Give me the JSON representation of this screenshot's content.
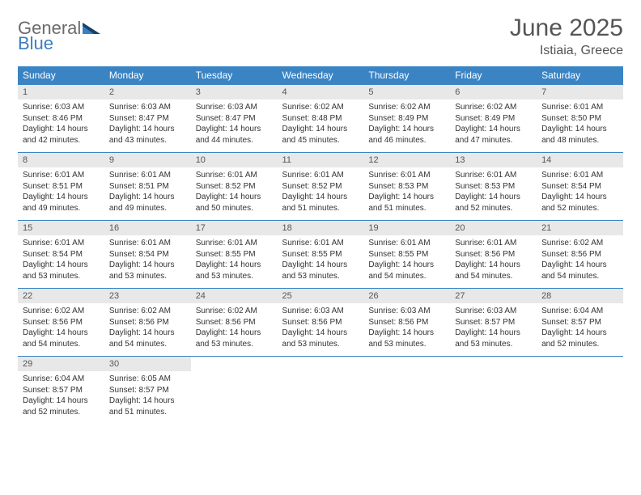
{
  "brand": {
    "word1": "General",
    "word2": "Blue",
    "text_color": "#6b6b6b",
    "accent_color": "#3a7fbf"
  },
  "title": "June 2025",
  "location": "Istiaia, Greece",
  "colors": {
    "header_bg": "#3a84c4",
    "header_text": "#ffffff",
    "daynum_bg": "#e8e8e8",
    "daynum_text": "#555555",
    "body_text": "#333333",
    "row_divider": "#3a84c4",
    "page_bg": "#ffffff"
  },
  "typography": {
    "title_fontsize": 30,
    "location_fontsize": 16,
    "dow_fontsize": 12,
    "daynum_fontsize": 11,
    "cell_fontsize": 10
  },
  "dow": [
    "Sunday",
    "Monday",
    "Tuesday",
    "Wednesday",
    "Thursday",
    "Friday",
    "Saturday"
  ],
  "weeks": [
    [
      {
        "n": "1",
        "sr": "Sunrise: 6:03 AM",
        "ss": "Sunset: 8:46 PM",
        "d1": "Daylight: 14 hours",
        "d2": "and 42 minutes."
      },
      {
        "n": "2",
        "sr": "Sunrise: 6:03 AM",
        "ss": "Sunset: 8:47 PM",
        "d1": "Daylight: 14 hours",
        "d2": "and 43 minutes."
      },
      {
        "n": "3",
        "sr": "Sunrise: 6:03 AM",
        "ss": "Sunset: 8:47 PM",
        "d1": "Daylight: 14 hours",
        "d2": "and 44 minutes."
      },
      {
        "n": "4",
        "sr": "Sunrise: 6:02 AM",
        "ss": "Sunset: 8:48 PM",
        "d1": "Daylight: 14 hours",
        "d2": "and 45 minutes."
      },
      {
        "n": "5",
        "sr": "Sunrise: 6:02 AM",
        "ss": "Sunset: 8:49 PM",
        "d1": "Daylight: 14 hours",
        "d2": "and 46 minutes."
      },
      {
        "n": "6",
        "sr": "Sunrise: 6:02 AM",
        "ss": "Sunset: 8:49 PM",
        "d1": "Daylight: 14 hours",
        "d2": "and 47 minutes."
      },
      {
        "n": "7",
        "sr": "Sunrise: 6:01 AM",
        "ss": "Sunset: 8:50 PM",
        "d1": "Daylight: 14 hours",
        "d2": "and 48 minutes."
      }
    ],
    [
      {
        "n": "8",
        "sr": "Sunrise: 6:01 AM",
        "ss": "Sunset: 8:51 PM",
        "d1": "Daylight: 14 hours",
        "d2": "and 49 minutes."
      },
      {
        "n": "9",
        "sr": "Sunrise: 6:01 AM",
        "ss": "Sunset: 8:51 PM",
        "d1": "Daylight: 14 hours",
        "d2": "and 49 minutes."
      },
      {
        "n": "10",
        "sr": "Sunrise: 6:01 AM",
        "ss": "Sunset: 8:52 PM",
        "d1": "Daylight: 14 hours",
        "d2": "and 50 minutes."
      },
      {
        "n": "11",
        "sr": "Sunrise: 6:01 AM",
        "ss": "Sunset: 8:52 PM",
        "d1": "Daylight: 14 hours",
        "d2": "and 51 minutes."
      },
      {
        "n": "12",
        "sr": "Sunrise: 6:01 AM",
        "ss": "Sunset: 8:53 PM",
        "d1": "Daylight: 14 hours",
        "d2": "and 51 minutes."
      },
      {
        "n": "13",
        "sr": "Sunrise: 6:01 AM",
        "ss": "Sunset: 8:53 PM",
        "d1": "Daylight: 14 hours",
        "d2": "and 52 minutes."
      },
      {
        "n": "14",
        "sr": "Sunrise: 6:01 AM",
        "ss": "Sunset: 8:54 PM",
        "d1": "Daylight: 14 hours",
        "d2": "and 52 minutes."
      }
    ],
    [
      {
        "n": "15",
        "sr": "Sunrise: 6:01 AM",
        "ss": "Sunset: 8:54 PM",
        "d1": "Daylight: 14 hours",
        "d2": "and 53 minutes."
      },
      {
        "n": "16",
        "sr": "Sunrise: 6:01 AM",
        "ss": "Sunset: 8:54 PM",
        "d1": "Daylight: 14 hours",
        "d2": "and 53 minutes."
      },
      {
        "n": "17",
        "sr": "Sunrise: 6:01 AM",
        "ss": "Sunset: 8:55 PM",
        "d1": "Daylight: 14 hours",
        "d2": "and 53 minutes."
      },
      {
        "n": "18",
        "sr": "Sunrise: 6:01 AM",
        "ss": "Sunset: 8:55 PM",
        "d1": "Daylight: 14 hours",
        "d2": "and 53 minutes."
      },
      {
        "n": "19",
        "sr": "Sunrise: 6:01 AM",
        "ss": "Sunset: 8:55 PM",
        "d1": "Daylight: 14 hours",
        "d2": "and 54 minutes."
      },
      {
        "n": "20",
        "sr": "Sunrise: 6:01 AM",
        "ss": "Sunset: 8:56 PM",
        "d1": "Daylight: 14 hours",
        "d2": "and 54 minutes."
      },
      {
        "n": "21",
        "sr": "Sunrise: 6:02 AM",
        "ss": "Sunset: 8:56 PM",
        "d1": "Daylight: 14 hours",
        "d2": "and 54 minutes."
      }
    ],
    [
      {
        "n": "22",
        "sr": "Sunrise: 6:02 AM",
        "ss": "Sunset: 8:56 PM",
        "d1": "Daylight: 14 hours",
        "d2": "and 54 minutes."
      },
      {
        "n": "23",
        "sr": "Sunrise: 6:02 AM",
        "ss": "Sunset: 8:56 PM",
        "d1": "Daylight: 14 hours",
        "d2": "and 54 minutes."
      },
      {
        "n": "24",
        "sr": "Sunrise: 6:02 AM",
        "ss": "Sunset: 8:56 PM",
        "d1": "Daylight: 14 hours",
        "d2": "and 53 minutes."
      },
      {
        "n": "25",
        "sr": "Sunrise: 6:03 AM",
        "ss": "Sunset: 8:56 PM",
        "d1": "Daylight: 14 hours",
        "d2": "and 53 minutes."
      },
      {
        "n": "26",
        "sr": "Sunrise: 6:03 AM",
        "ss": "Sunset: 8:56 PM",
        "d1": "Daylight: 14 hours",
        "d2": "and 53 minutes."
      },
      {
        "n": "27",
        "sr": "Sunrise: 6:03 AM",
        "ss": "Sunset: 8:57 PM",
        "d1": "Daylight: 14 hours",
        "d2": "and 53 minutes."
      },
      {
        "n": "28",
        "sr": "Sunrise: 6:04 AM",
        "ss": "Sunset: 8:57 PM",
        "d1": "Daylight: 14 hours",
        "d2": "and 52 minutes."
      }
    ],
    [
      {
        "n": "29",
        "sr": "Sunrise: 6:04 AM",
        "ss": "Sunset: 8:57 PM",
        "d1": "Daylight: 14 hours",
        "d2": "and 52 minutes."
      },
      {
        "n": "30",
        "sr": "Sunrise: 6:05 AM",
        "ss": "Sunset: 8:57 PM",
        "d1": "Daylight: 14 hours",
        "d2": "and 51 minutes."
      },
      {
        "empty": true
      },
      {
        "empty": true
      },
      {
        "empty": true
      },
      {
        "empty": true
      },
      {
        "empty": true
      }
    ]
  ]
}
